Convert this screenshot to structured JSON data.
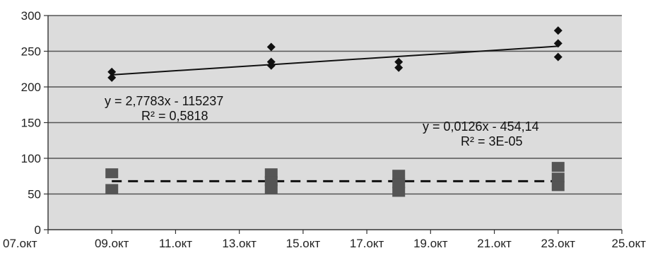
{
  "chart_data": {
    "type": "scatter",
    "title": "",
    "xlabel": "",
    "ylabel": "",
    "x_ticks": [
      "07.окт",
      "09.окт",
      "11.окт",
      "13.окт",
      "15.окт",
      "17.окт",
      "19.окт",
      "21.окт",
      "23.окт",
      "25.окт"
    ],
    "y_ticks": [
      "0",
      "50",
      "100",
      "150",
      "200",
      "250",
      "300"
    ],
    "ylim": [
      0,
      300
    ],
    "xlim": [
      "07.окт",
      "25.окт"
    ],
    "grid": "horizontal",
    "background_color": "#dcdcdc",
    "series": [
      {
        "marker": "diamond",
        "color": "#111111",
        "points": [
          {
            "x": "09.окт",
            "y": 221
          },
          {
            "x": "09.окт",
            "y": 213
          },
          {
            "x": "14.окт",
            "y": 256
          },
          {
            "x": "14.окт",
            "y": 235
          },
          {
            "x": "14.окт",
            "y": 230
          },
          {
            "x": "18.окт",
            "y": 235
          },
          {
            "x": "18.окт",
            "y": 227
          },
          {
            "x": "23.окт",
            "y": 279
          },
          {
            "x": "23.окт",
            "y": 261
          },
          {
            "x": "23.окт",
            "y": 242
          }
        ],
        "trendline": {
          "style": "solid",
          "from": {
            "x": "09.окт",
            "y": 217
          },
          "to": {
            "x": "23.окт",
            "y": 257
          },
          "equation": "y = 2,7783x - 115237",
          "r2": "R² = 0,5818"
        }
      },
      {
        "marker": "square",
        "color": "#555555",
        "points": [
          {
            "x": "09.окт",
            "y": 79
          },
          {
            "x": "09.окт",
            "y": 57
          },
          {
            "x": "14.окт",
            "y": 79
          },
          {
            "x": "14.окт",
            "y": 68
          },
          {
            "x": "14.окт",
            "y": 57
          },
          {
            "x": "18.окт",
            "y": 77
          },
          {
            "x": "18.окт",
            "y": 65
          },
          {
            "x": "18.окт",
            "y": 53
          },
          {
            "x": "23.окт",
            "y": 88
          },
          {
            "x": "23.окт",
            "y": 73
          },
          {
            "x": "23.окт",
            "y": 61
          }
        ],
        "trendline": {
          "style": "dashed",
          "from": {
            "x": "09.окт",
            "y": 68
          },
          "to": {
            "x": "23.окт",
            "y": 68
          },
          "equation": "y = 0,0126x - 454,14",
          "r2": "R² = 3E-05"
        }
      }
    ]
  }
}
